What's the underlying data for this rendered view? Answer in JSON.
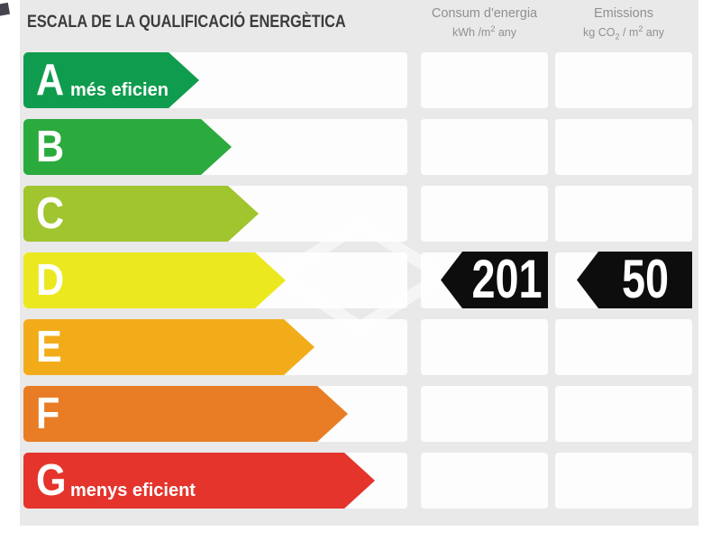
{
  "title": "ESCALA DE LA QUALIFICACIÓ ENERGÈTICA",
  "columns": {
    "consumption": {
      "title": "Consum d'energia",
      "unit_base": "kWh /m",
      "unit_sup": "2",
      "unit_tail": " any"
    },
    "emissions": {
      "title": "Emissions",
      "unit_pre": "kg CO",
      "unit_sub": "2",
      "unit_mid": " / m",
      "unit_sup": "2",
      "unit_tail": " any"
    }
  },
  "scale": {
    "ratings": [
      {
        "letter": "A",
        "label": "més eficient",
        "color": "#109c4e",
        "arrow_tip_x": 222
      },
      {
        "letter": "B",
        "label": "",
        "color": "#2baa3e",
        "arrow_tip_x": 258
      },
      {
        "letter": "C",
        "label": "",
        "color": "#a0c52f",
        "arrow_tip_x": 288
      },
      {
        "letter": "D",
        "label": "",
        "color": "#ece81f",
        "arrow_tip_x": 318
      },
      {
        "letter": "E",
        "label": "",
        "color": "#f3ac19",
        "arrow_tip_x": 350
      },
      {
        "letter": "F",
        "label": "",
        "color": "#e87d25",
        "arrow_tip_x": 387
      },
      {
        "letter": "G",
        "label": "menys eficient",
        "color": "#e4342c",
        "arrow_tip_x": 417
      }
    ]
  },
  "values": {
    "rating_letter": "D",
    "consumption": "201",
    "emissions": "50"
  },
  "colors": {
    "panel_background": "#e9e9ea",
    "cell_background": "#fdfdfd",
    "badge_background": "#0d0d0d",
    "title_text": "#3c3c3c",
    "header_text": "#8f9092"
  },
  "chart_data": {
    "type": "bar",
    "title": "ESCALA DE LA QUALIFICACIÓ ENERGÈTICA",
    "categories": [
      "A",
      "B",
      "C",
      "D",
      "E",
      "F",
      "G"
    ],
    "category_labels": [
      "A més eficient",
      "B",
      "C",
      "D",
      "E",
      "F",
      "G menys eficient"
    ],
    "series": [
      {
        "name": "relative arrow length",
        "values": [
          222,
          258,
          288,
          318,
          350,
          387,
          417
        ]
      }
    ],
    "assigned_rating": "D",
    "consumption_kwh_m2_any": 201,
    "emissions_kg_co2_m2_any": 50,
    "value_columns": [
      "Consum d'energia kWh /m² any",
      "Emissions kg CO₂ / m² any"
    ],
    "legend_position": "none",
    "grid": false
  }
}
